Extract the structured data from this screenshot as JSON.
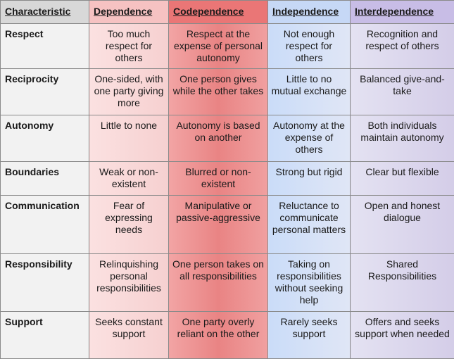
{
  "table": {
    "headers": [
      "Characteristic",
      "Dependence",
      "Codependence",
      "Independence",
      "Interdependence"
    ],
    "rows": [
      [
        "Respect",
        "Too much respect for others",
        "Respect at the expense of personal autonomy",
        "Not enough respect for others",
        "Recognition and respect of others"
      ],
      [
        "Reciprocity",
        "One-sided, with one party giving more",
        "One person gives while the other takes",
        "Little to no mutual exchange",
        "Balanced give-and-take"
      ],
      [
        "Autonomy",
        "Little to none",
        "Autonomy is based on another",
        "Autonomy at the expense of others",
        "Both individuals maintain autonomy"
      ],
      [
        "Boundaries",
        "Weak or non-existent",
        "Blurred or non-existent",
        "Strong but rigid",
        "Clear but flexible"
      ],
      [
        "Communication",
        "Fear of expressing needs",
        "Manipulative or passive-aggressive",
        "Reluctance to communicate personal matters",
        "Open and honest dialogue"
      ],
      [
        "Responsibility",
        "Relinquishing personal responsibilities",
        "One person takes on all responsibilities",
        "Taking on responsibilities without seeking help",
        "Shared Responsibilities"
      ],
      [
        "Support",
        "Seeks constant support",
        "One party overly reliant on the other",
        "Rarely seeks support",
        "Offers and seeks support when needed"
      ]
    ]
  }
}
